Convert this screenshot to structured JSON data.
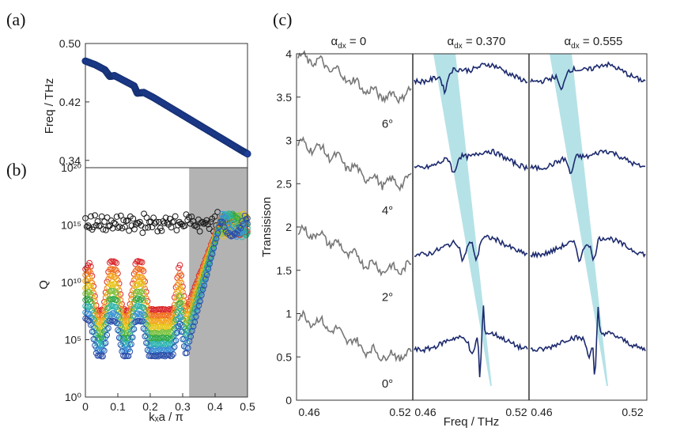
{
  "panel_labels": {
    "a": "(a)",
    "b": "(b)",
    "c": "(c)"
  },
  "chart_data": [
    {
      "id": "a",
      "type": "scatter",
      "ylabel": "Freq / THz",
      "xlim": [
        0,
        0.5
      ],
      "ylim": [
        0.33,
        0.5
      ],
      "yticks": [
        "0.50",
        "0.42",
        "0.34"
      ],
      "point_color": "#1f3f9a",
      "x": [
        0.0,
        0.03,
        0.06,
        0.075,
        0.09,
        0.12,
        0.15,
        0.16,
        0.18,
        0.21,
        0.24,
        0.27,
        0.3,
        0.33,
        0.36,
        0.39,
        0.42,
        0.45,
        0.48,
        0.5
      ],
      "y": [
        0.476,
        0.471,
        0.464,
        0.455,
        0.456,
        0.449,
        0.442,
        0.432,
        0.433,
        0.426,
        0.418,
        0.41,
        0.402,
        0.394,
        0.386,
        0.378,
        0.37,
        0.362,
        0.354,
        0.349
      ]
    },
    {
      "id": "b",
      "type": "scatter",
      "ylabel": "Q",
      "xlabel": "kₓa / π",
      "xlim": [
        0,
        0.5
      ],
      "xticks": [
        "0",
        "0.1",
        "0.2",
        "0.3",
        "0.4",
        "0.5"
      ],
      "ylog": true,
      "ylim_exp": [
        0,
        20
      ],
      "yticks": [
        {
          "exp": 0,
          "label": "10⁰"
        },
        {
          "exp": 5,
          "label": "10⁵"
        },
        {
          "exp": 10,
          "label": "10¹⁰"
        },
        {
          "exp": 15,
          "label": "10¹⁵"
        },
        {
          "exp": 20,
          "label": "10²⁰"
        }
      ],
      "shaded_region": {
        "xmin": 0.32,
        "xmax": 0.5,
        "color": "#b3b3b3"
      },
      "series": [
        {
          "color": "#1a1a1a",
          "levels_log10": [
            15.6,
            14.8,
            15.3,
            15.0,
            15.8,
            14.6,
            15.2,
            15.5,
            14.9,
            15.4,
            15.1,
            14.7,
            15.6,
            15.0,
            15.3,
            14.8,
            15.5,
            15.2,
            14.9,
            15.4,
            15.0,
            15.6,
            14.7,
            15.3,
            15.1,
            14.9,
            15.4,
            15.0,
            15.5,
            14.8,
            15.2
          ]
        },
        {
          "color": "#d9262a",
          "base_log10": 7.6
        },
        {
          "color": "#f07020",
          "base_log10": 7.1
        },
        {
          "color": "#f2a51e",
          "base_log10": 6.6
        },
        {
          "color": "#e8c61c",
          "base_log10": 6.1
        },
        {
          "color": "#7cc242",
          "base_log10": 5.6
        },
        {
          "color": "#2fa84a",
          "base_log10": 5.1
        },
        {
          "color": "#2fb5b0",
          "base_log10": 4.6
        },
        {
          "color": "#3a8fd6",
          "base_log10": 4.1
        },
        {
          "color": "#2b4ea8",
          "base_log10": 3.6
        }
      ]
    },
    {
      "id": "c",
      "type": "line",
      "ylabel": "Transisison",
      "xlabel": "Freq / THz",
      "ylim": [
        0,
        4
      ],
      "yticks": [
        "0",
        "0.5",
        "1",
        "1.5",
        "2",
        "2.5",
        "3",
        "3.5",
        "4"
      ],
      "xticks": [
        "0.46",
        "0.52"
      ],
      "angle_labels": [
        "6°",
        "4°",
        "2°",
        "0°"
      ],
      "panels": [
        {
          "title": "α",
          "sub": "dx",
          "value": " = 0",
          "color": "#777777",
          "offsets": [
            3.75,
            2.75,
            1.75,
            0.75
          ],
          "band": null
        },
        {
          "title": "α",
          "sub": "dx",
          "value": " = 0.370",
          "color": "#1c2a6e",
          "offsets": [
            3.8,
            2.8,
            1.8,
            0.7
          ],
          "band": {
            "color": "#a8dde3"
          }
        },
        {
          "title": "α",
          "sub": "dx",
          "value": " = 0.555",
          "color": "#1c2a6e",
          "offsets": [
            3.8,
            2.8,
            1.8,
            0.7
          ],
          "band": {
            "color": "#a8dde3"
          }
        }
      ]
    }
  ]
}
